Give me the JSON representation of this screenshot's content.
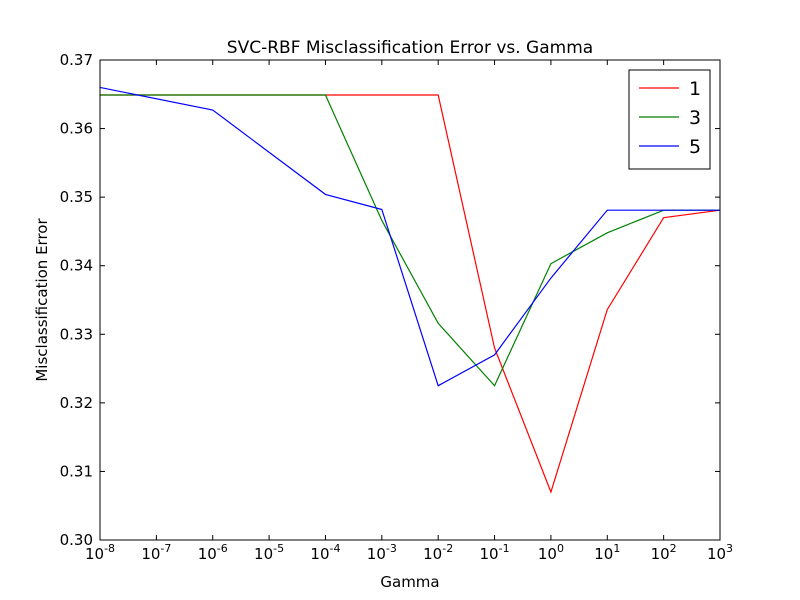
{
  "chart_data": {
    "type": "line",
    "title": "SVC-RBF Misclassification Error vs. Gamma",
    "xlabel": "Gamma",
    "ylabel": "Misclassification Error",
    "xscale": "log",
    "xlim": [
      1e-08,
      1000
    ],
    "ylim": [
      0.3,
      0.37
    ],
    "grid": false,
    "legend_position": "top-right",
    "x_ticks": [
      {
        "exp": "-8",
        "value": 1e-08
      },
      {
        "exp": "-7",
        "value": 1e-07
      },
      {
        "exp": "-6",
        "value": 1e-06
      },
      {
        "exp": "-5",
        "value": 1e-05
      },
      {
        "exp": "-4",
        "value": 0.0001
      },
      {
        "exp": "-3",
        "value": 0.001
      },
      {
        "exp": "-2",
        "value": 0.01
      },
      {
        "exp": "-1",
        "value": 0.1
      },
      {
        "exp": "0",
        "value": 1
      },
      {
        "exp": "1",
        "value": 10
      },
      {
        "exp": "2",
        "value": 100
      },
      {
        "exp": "3",
        "value": 1000
      }
    ],
    "x_tick_base": "10",
    "y_ticks": [
      "0.30",
      "0.31",
      "0.32",
      "0.33",
      "0.34",
      "0.35",
      "0.36",
      "0.37"
    ],
    "x": [
      1e-08,
      1e-06,
      0.0001,
      0.001,
      0.01,
      0.1,
      1,
      10,
      100,
      1000
    ],
    "series": [
      {
        "name": "1",
        "color": "#ff0000",
        "values": [
          0.3649,
          0.3649,
          0.3649,
          0.3649,
          0.3649,
          0.328,
          0.307,
          0.3336,
          0.347,
          0.3481
        ]
      },
      {
        "name": "3",
        "color": "#008000",
        "values": [
          0.3649,
          0.3649,
          0.3649,
          0.3466,
          0.3316,
          0.3225,
          0.3403,
          0.3448,
          0.3481,
          0.3481
        ]
      },
      {
        "name": "5",
        "color": "#0000ff",
        "values": [
          0.366,
          0.3627,
          0.3504,
          0.3482,
          0.3225,
          0.327,
          0.3382,
          0.3481,
          0.3481,
          0.3481
        ]
      }
    ]
  }
}
